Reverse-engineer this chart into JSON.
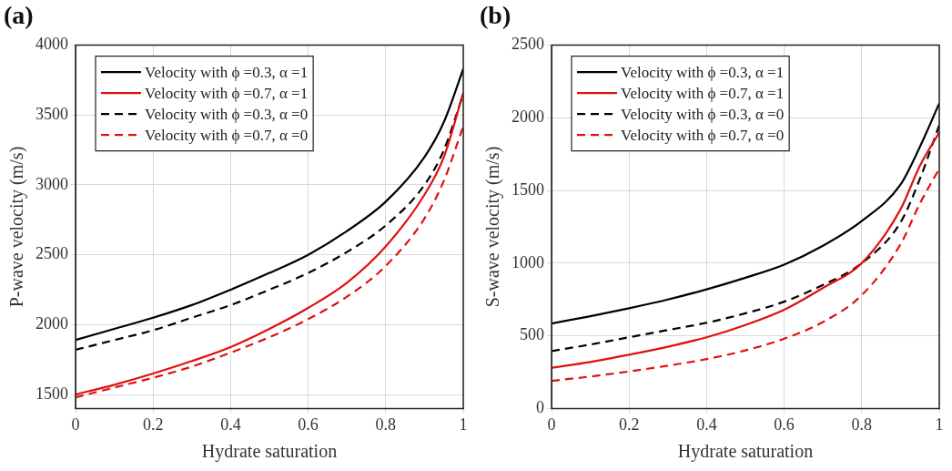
{
  "chart_data": [
    {
      "type": "line",
      "title": "(a)",
      "xlabel": "Hydrate saturation",
      "ylabel": "P-wave velocity (m/s)",
      "x": [
        0,
        0.1,
        0.2,
        0.3,
        0.4,
        0.5,
        0.6,
        0.7,
        0.8,
        0.9,
        0.95,
        1
      ],
      "xlim": [
        0,
        1
      ],
      "xticks": [
        0,
        0.2,
        0.4,
        0.6,
        0.8,
        1
      ],
      "ylim": [
        1400,
        4000
      ],
      "yticks": [
        1500,
        2000,
        2500,
        3000,
        3500,
        4000
      ],
      "grid": true,
      "legend": "top left",
      "marker": "none",
      "series": [
        {
          "name": "Velocity with ϕ =0.3, α =1",
          "color": "#000000",
          "line_style": "solid",
          "values": [
            1890,
            1970,
            2050,
            2140,
            2250,
            2370,
            2500,
            2670,
            2880,
            3200,
            3450,
            3830
          ]
        },
        {
          "name": "Velocity with ϕ =0.7, α =1",
          "color": "#e01010",
          "line_style": "solid",
          "values": [
            1500,
            1570,
            1650,
            1740,
            1840,
            1970,
            2120,
            2300,
            2560,
            2930,
            3200,
            3660
          ]
        },
        {
          "name": "Velocity with ϕ =0.3, α =0",
          "color": "#000000",
          "line_style": "dashed",
          "values": [
            1820,
            1890,
            1960,
            2050,
            2140,
            2250,
            2370,
            2520,
            2710,
            3000,
            3250,
            3650
          ]
        },
        {
          "name": "Velocity with ϕ =0.7, α =0",
          "color": "#e01010",
          "line_style": "dashed",
          "values": [
            1480,
            1550,
            1620,
            1700,
            1800,
            1910,
            2040,
            2200,
            2420,
            2760,
            3030,
            3420
          ]
        }
      ]
    },
    {
      "type": "line",
      "title": "(b)",
      "xlabel": "Hydrate saturation",
      "ylabel": "S-wave velocity (m/s)",
      "x": [
        0,
        0.1,
        0.2,
        0.3,
        0.4,
        0.5,
        0.6,
        0.7,
        0.8,
        0.9,
        0.95,
        1
      ],
      "xlim": [
        0,
        1
      ],
      "xticks": [
        0,
        0.2,
        0.4,
        0.6,
        0.8,
        1
      ],
      "ylim": [
        0,
        2500
      ],
      "yticks": [
        0,
        500,
        1000,
        1500,
        2000,
        2500
      ],
      "grid": true,
      "legend": "top left",
      "marker": "none",
      "series": [
        {
          "name": "Velocity with ϕ =0.3, α =1",
          "color": "#000000",
          "line_style": "solid",
          "values": [
            585,
            635,
            690,
            750,
            820,
            900,
            990,
            1120,
            1290,
            1540,
            1800,
            2100
          ]
        },
        {
          "name": "Velocity with ϕ =0.7, α =1",
          "color": "#e01010",
          "line_style": "solid",
          "values": [
            280,
            320,
            370,
            425,
            490,
            575,
            680,
            830,
            1000,
            1370,
            1670,
            1900
          ]
        },
        {
          "name": "Velocity with ϕ =0.3, α =0",
          "color": "#000000",
          "line_style": "dashed",
          "values": [
            395,
            440,
            490,
            540,
            590,
            655,
            735,
            850,
            1000,
            1280,
            1580,
            1950
          ]
        },
        {
          "name": "Velocity with ϕ =0.7, α =0",
          "color": "#e01010",
          "line_style": "dashed",
          "values": [
            190,
            220,
            255,
            295,
            340,
            400,
            480,
            595,
            780,
            1130,
            1410,
            1650
          ]
        }
      ]
    }
  ]
}
